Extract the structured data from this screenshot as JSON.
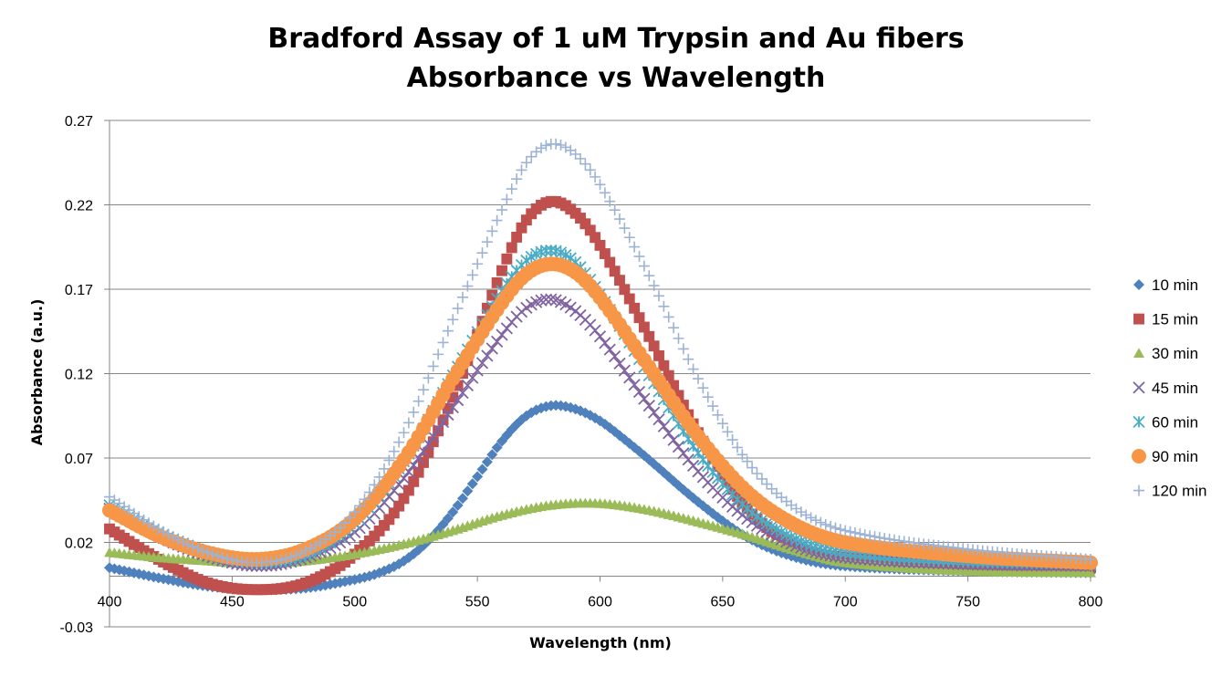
{
  "chart_data": {
    "type": "scatter",
    "title": [
      "Bradford Assay of 1 uM Trypsin and Au fibers",
      "Absorbance vs Wavelength"
    ],
    "xlabel": "Wavelength (nm)",
    "ylabel": "Absorbance (a.u.)",
    "xlim": [
      400,
      800
    ],
    "ylim": [
      -0.03,
      0.27
    ],
    "xticks": [
      400,
      450,
      500,
      550,
      600,
      650,
      700,
      750,
      800
    ],
    "yticks": [
      -0.03,
      0.02,
      0.07,
      0.12,
      0.17,
      0.22,
      0.27
    ],
    "x_tick_labels": [
      "400",
      "450",
      "500",
      "550",
      "600",
      "650",
      "700",
      "750",
      "800"
    ],
    "y_tick_labels": [
      "-0.03",
      "0.02",
      "0.07",
      "0.12",
      "0.17",
      "0.22",
      "0.27"
    ],
    "grid": "horizontal",
    "legend_position": "right",
    "series": [
      {
        "name": "10 min",
        "marker": "diamond",
        "color": "#4F81BD",
        "x": [
          400,
          420,
          440,
          460,
          480,
          500,
          510,
          520,
          530,
          540,
          550,
          560,
          570,
          580,
          590,
          600,
          610,
          620,
          640,
          660,
          680,
          700,
          750,
          800
        ],
        "y": [
          0.005,
          -0.001,
          -0.006,
          -0.008,
          -0.007,
          -0.002,
          0.002,
          0.009,
          0.021,
          0.038,
          0.059,
          0.08,
          0.095,
          0.101,
          0.099,
          0.092,
          0.081,
          0.069,
          0.044,
          0.023,
          0.011,
          0.006,
          0.003,
          0.002
        ]
      },
      {
        "name": "15 min",
        "marker": "square",
        "color": "#C0504D",
        "x": [
          400,
          420,
          440,
          460,
          480,
          500,
          520,
          540,
          560,
          570,
          580,
          590,
          600,
          620,
          640,
          660,
          680,
          700,
          750,
          800
        ],
        "y": [
          0.028,
          0.01,
          -0.004,
          -0.008,
          -0.004,
          0.013,
          0.046,
          0.106,
          0.181,
          0.211,
          0.222,
          0.215,
          0.196,
          0.142,
          0.085,
          0.04,
          0.018,
          0.011,
          0.007,
          0.005
        ]
      },
      {
        "name": "30 min",
        "marker": "triangle",
        "color": "#9BBB59",
        "x": [
          400,
          420,
          440,
          460,
          480,
          500,
          520,
          540,
          560,
          580,
          600,
          620,
          640,
          660,
          680,
          700,
          750,
          800
        ],
        "y": [
          0.014,
          0.011,
          0.009,
          0.007,
          0.009,
          0.013,
          0.019,
          0.027,
          0.036,
          0.042,
          0.043,
          0.039,
          0.032,
          0.024,
          0.015,
          0.008,
          0.003,
          0.002
        ]
      },
      {
        "name": "45 min",
        "marker": "x",
        "color": "#8064A2",
        "x": [
          400,
          420,
          440,
          460,
          480,
          500,
          520,
          540,
          560,
          570,
          580,
          590,
          600,
          620,
          640,
          660,
          680,
          700,
          750,
          800
        ],
        "y": [
          0.04,
          0.024,
          0.012,
          0.006,
          0.011,
          0.026,
          0.058,
          0.1,
          0.143,
          0.159,
          0.164,
          0.157,
          0.142,
          0.101,
          0.062,
          0.034,
          0.018,
          0.011,
          0.007,
          0.006
        ]
      },
      {
        "name": "60 min",
        "marker": "asterisk",
        "color": "#4BACC6",
        "x": [
          400,
          420,
          440,
          460,
          480,
          500,
          520,
          540,
          560,
          570,
          580,
          590,
          600,
          620,
          640,
          660,
          680,
          700,
          750,
          800
        ],
        "y": [
          0.042,
          0.026,
          0.014,
          0.008,
          0.013,
          0.031,
          0.068,
          0.119,
          0.169,
          0.187,
          0.193,
          0.186,
          0.167,
          0.119,
          0.073,
          0.04,
          0.022,
          0.014,
          0.009,
          0.007
        ]
      },
      {
        "name": "90 min",
        "marker": "circle",
        "color": "#F79646",
        "x": [
          400,
          420,
          440,
          460,
          480,
          500,
          520,
          540,
          560,
          570,
          580,
          590,
          600,
          620,
          640,
          660,
          680,
          700,
          750,
          800
        ],
        "y": [
          0.039,
          0.024,
          0.014,
          0.01,
          0.016,
          0.034,
          0.069,
          0.117,
          0.162,
          0.179,
          0.185,
          0.18,
          0.165,
          0.124,
          0.083,
          0.05,
          0.03,
          0.02,
          0.012,
          0.008
        ]
      },
      {
        "name": "120 min",
        "marker": "plus",
        "color": "#9CB3D4",
        "x": [
          400,
          420,
          440,
          460,
          480,
          500,
          520,
          540,
          560,
          570,
          580,
          590,
          600,
          620,
          640,
          660,
          680,
          700,
          750,
          800
        ],
        "y": [
          0.047,
          0.028,
          0.014,
          0.008,
          0.015,
          0.038,
          0.085,
          0.152,
          0.217,
          0.245,
          0.256,
          0.25,
          0.232,
          0.178,
          0.117,
          0.068,
          0.04,
          0.027,
          0.016,
          0.01
        ]
      }
    ]
  }
}
